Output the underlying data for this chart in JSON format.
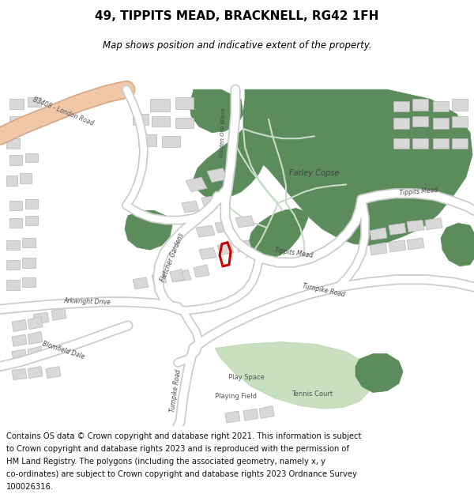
{
  "title": "49, TIPPITS MEAD, BRACKNELL, RG42 1FH",
  "subtitle": "Map shows position and indicative extent of the property.",
  "title_fontsize": 11,
  "subtitle_fontsize": 8.5,
  "footer_fontsize": 7.2,
  "map_bg": "#f5f5f5",
  "green_color": "#5c8c5c",
  "light_green": "#c8dfc0",
  "salmon_road": "#f0c8a8",
  "salmon_road_edge": "#e8b898",
  "building_color": "#d8d8d8",
  "building_stroke": "#b8b8b8",
  "property_color": "#cc0000",
  "road_color": "#ffffff",
  "road_edge": "#cccccc",
  "path_color": "#ddeedd",
  "fig_width": 6.0,
  "fig_height": 6.25,
  "dpi": 100,
  "footer_lines": [
    "Contains OS data © Crown copyright and database right 2021. This information is subject",
    "to Crown copyright and database rights 2023 and is reproduced with the permission of",
    "HM Land Registry. The polygons (including the associated geometry, namely x, y",
    "co-ordinates) are subject to Crown copyright and database rights 2023 Ordnance Survey",
    "100026316."
  ]
}
